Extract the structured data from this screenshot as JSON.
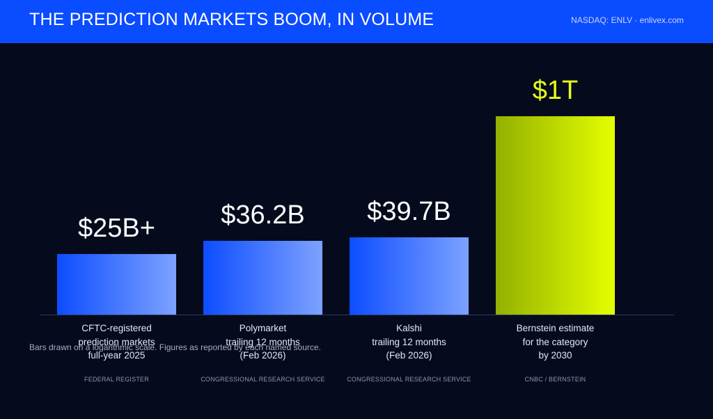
{
  "header": {
    "title": "THE PREDICTION MARKETS BOOM, IN VOLUME",
    "right_text": "NASDAQ: ENLV · enlivex.com"
  },
  "chart_data": {
    "type": "bar",
    "scale": "log",
    "categories": [
      [
        "CFTC-registered",
        "prediction markets",
        "full-year 2025"
      ],
      [
        "Polymarket",
        "trailing 12 months",
        "(Feb 2026)"
      ],
      [
        "Kalshi",
        "trailing 12 months",
        "(Feb 2026)"
      ],
      [
        "Bernstein estimate",
        "for the category",
        "by 2030"
      ]
    ],
    "values_usd_billions": [
      25,
      36.2,
      39.7,
      1000
    ],
    "value_labels": [
      "$25B+",
      "$36.2B",
      "$39.7B",
      "$1T"
    ],
    "sources": [
      "FEDERAL REGISTER",
      "CONGRESSIONAL RESEARCH SERVICE",
      "CONGRESSIONAL RESEARCH SERVICE",
      "CNBC / BERNSTEIN"
    ],
    "bar_colors": [
      "blue",
      "blue",
      "blue",
      "yellow"
    ],
    "colors": {
      "blue_start": "#0d4dff",
      "blue_end": "#7da2ff",
      "yellow_start": "#93b000",
      "yellow_end": "#e4ff00"
    },
    "footnote": "Bars drawn on a logarithmic scale. Figures as reported by each named source."
  }
}
